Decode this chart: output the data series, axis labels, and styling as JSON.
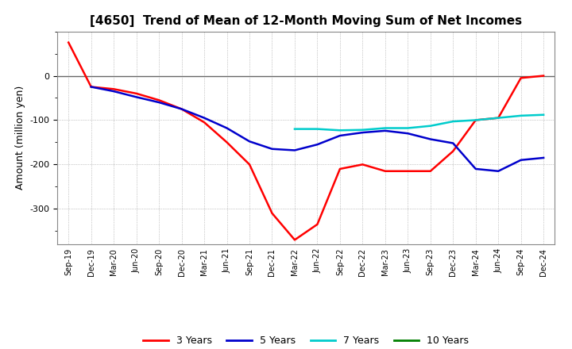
{
  "title": "[4650]  Trend of Mean of 12-Month Moving Sum of Net Incomes",
  "ylabel": "Amount (million yen)",
  "ylim": [
    -380,
    100
  ],
  "yticks": [
    -300,
    -200,
    -100,
    0
  ],
  "background_color": "#ffffff",
  "grid_color": "#999999",
  "x_labels": [
    "Sep-19",
    "Dec-19",
    "Mar-20",
    "Jun-20",
    "Sep-20",
    "Dec-20",
    "Mar-21",
    "Jun-21",
    "Sep-21",
    "Dec-21",
    "Mar-22",
    "Jun-22",
    "Sep-22",
    "Dec-22",
    "Mar-23",
    "Jun-23",
    "Sep-23",
    "Dec-23",
    "Mar-24",
    "Jun-24",
    "Sep-24",
    "Dec-24"
  ],
  "series_3y": {
    "label": "3 Years",
    "color": "#ff0000",
    "x_indices": [
      0,
      1,
      2,
      3,
      4,
      5,
      6,
      7,
      8,
      9,
      10,
      11,
      12,
      13,
      14,
      15,
      16,
      17,
      18,
      19,
      20,
      21
    ],
    "y": [
      75,
      -25,
      -30,
      -40,
      -55,
      -75,
      -105,
      -150,
      -200,
      -310,
      -370,
      -335,
      -210,
      -200,
      -215,
      -215,
      -215,
      -170,
      -100,
      -95,
      -5,
      0
    ]
  },
  "series_5y": {
    "label": "5 Years",
    "color": "#0000cc",
    "x_indices": [
      1,
      2,
      3,
      4,
      5,
      6,
      7,
      8,
      9,
      10,
      11,
      12,
      13,
      14,
      15,
      16,
      17,
      18,
      19,
      20,
      21
    ],
    "y": [
      -25,
      -35,
      -48,
      -60,
      -75,
      -95,
      -118,
      -148,
      -165,
      -168,
      -155,
      -135,
      -128,
      -124,
      -130,
      -143,
      -152,
      -210,
      -215,
      -190,
      -185
    ]
  },
  "series_7y": {
    "label": "7 Years",
    "color": "#00cccc",
    "x_indices": [
      10,
      11,
      12,
      13,
      14,
      15,
      16,
      17,
      18,
      19,
      20,
      21
    ],
    "y": [
      -120,
      -120,
      -123,
      -122,
      -118,
      -118,
      -113,
      -103,
      -100,
      -95,
      -90,
      -88
    ]
  },
  "series_10y": {
    "label": "10 Years",
    "color": "#008000",
    "x_indices": [],
    "y": []
  },
  "legend_colors": [
    "#ff0000",
    "#0000cc",
    "#00cccc",
    "#008000"
  ],
  "legend_labels": [
    "3 Years",
    "5 Years",
    "7 Years",
    "10 Years"
  ]
}
